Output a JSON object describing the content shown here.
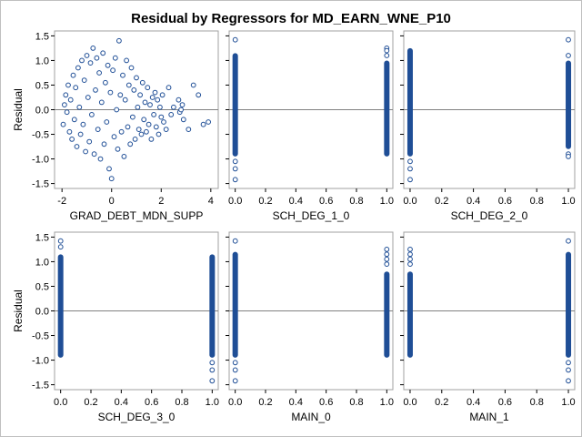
{
  "title": "Residual by Regressors for MD_EARN_WNE_P10",
  "colors": {
    "marker": "#1f4e96",
    "frame": "#a0a0a0",
    "refline": "#808080"
  },
  "chart_data": [
    {
      "type": "scatter",
      "xlabel": "GRAD_DEBT_MDN_SUPP",
      "ylabel": "Residual",
      "xlim": [
        -2.3,
        4.3
      ],
      "ylim": [
        -1.6,
        1.6
      ],
      "xticks": [
        -2,
        0,
        2,
        4
      ],
      "xtick_labels": [
        "-2",
        "0",
        "2",
        "4"
      ],
      "yticks": [
        -1.5,
        -1.0,
        -0.5,
        0.0,
        0.5,
        1.0,
        1.5
      ],
      "ytick_labels": [
        "-1.5",
        "-1.0",
        "-0.5",
        "0.0",
        "0.5",
        "1.0",
        "1.5"
      ],
      "reference_line_y": 0,
      "points": [
        [
          -1.95,
          -0.3
        ],
        [
          -1.9,
          0.1
        ],
        [
          -1.85,
          0.3
        ],
        [
          -1.8,
          -0.05
        ],
        [
          -1.75,
          0.5
        ],
        [
          -1.7,
          -0.45
        ],
        [
          -1.65,
          0.2
        ],
        [
          -1.6,
          -0.6
        ],
        [
          -1.55,
          0.7
        ],
        [
          -1.5,
          -0.2
        ],
        [
          -1.45,
          0.45
        ],
        [
          -1.4,
          -0.75
        ],
        [
          -1.35,
          0.85
        ],
        [
          -1.3,
          0.05
        ],
        [
          -1.25,
          -0.5
        ],
        [
          -1.2,
          1.0
        ],
        [
          -1.15,
          -0.3
        ],
        [
          -1.1,
          0.6
        ],
        [
          -1.05,
          -0.85
        ],
        [
          -1.0,
          1.1
        ],
        [
          -0.95,
          0.25
        ],
        [
          -0.9,
          -0.65
        ],
        [
          -0.85,
          0.95
        ],
        [
          -0.8,
          -0.1
        ],
        [
          -0.75,
          1.25
        ],
        [
          -0.7,
          -0.9
        ],
        [
          -0.65,
          0.4
        ],
        [
          -0.6,
          1.05
        ],
        [
          -0.55,
          -0.4
        ],
        [
          -0.5,
          0.75
        ],
        [
          -0.45,
          -1.0
        ],
        [
          -0.4,
          0.15
        ],
        [
          -0.35,
          1.15
        ],
        [
          -0.3,
          -0.7
        ],
        [
          -0.25,
          0.55
        ],
        [
          -0.2,
          -0.25
        ],
        [
          -0.15,
          0.9
        ],
        [
          -0.1,
          -1.2
        ],
        [
          -0.05,
          0.35
        ],
        [
          0.0,
          -1.4
        ],
        [
          0.05,
          0.8
        ],
        [
          0.1,
          -0.55
        ],
        [
          0.15,
          1.05
        ],
        [
          0.2,
          0.0
        ],
        [
          0.25,
          -0.8
        ],
        [
          0.3,
          1.4
        ],
        [
          0.35,
          0.3
        ],
        [
          0.4,
          -0.45
        ],
        [
          0.45,
          0.7
        ],
        [
          0.5,
          -0.95
        ],
        [
          0.55,
          0.2
        ],
        [
          0.6,
          1.0
        ],
        [
          0.65,
          -0.35
        ],
        [
          0.7,
          0.5
        ],
        [
          0.75,
          -0.7
        ],
        [
          0.8,
          0.85
        ],
        [
          0.85,
          -0.15
        ],
        [
          0.9,
          0.4
        ],
        [
          0.95,
          -0.6
        ],
        [
          1.0,
          0.65
        ],
        [
          1.05,
          0.05
        ],
        [
          1.1,
          -0.4
        ],
        [
          1.15,
          0.3
        ],
        [
          1.2,
          -0.5
        ],
        [
          1.25,
          0.55
        ],
        [
          1.3,
          -0.2
        ],
        [
          1.35,
          0.15
        ],
        [
          1.4,
          -0.45
        ],
        [
          1.45,
          0.45
        ],
        [
          1.5,
          -0.3
        ],
        [
          1.55,
          0.1
        ],
        [
          1.6,
          -0.6
        ],
        [
          1.65,
          0.25
        ],
        [
          1.7,
          -0.1
        ],
        [
          1.75,
          0.35
        ],
        [
          1.8,
          -0.35
        ],
        [
          1.85,
          0.2
        ],
        [
          1.9,
          -0.5
        ],
        [
          1.95,
          0.05
        ],
        [
          2.0,
          -0.15
        ],
        [
          2.05,
          0.3
        ],
        [
          2.1,
          -0.25
        ],
        [
          2.2,
          -0.4
        ],
        [
          2.3,
          0.45
        ],
        [
          2.4,
          -0.1
        ],
        [
          2.5,
          0.05
        ],
        [
          2.7,
          0.2
        ],
        [
          2.75,
          -0.05
        ],
        [
          2.8,
          0.0
        ],
        [
          2.85,
          0.1
        ],
        [
          2.9,
          -0.2
        ],
        [
          3.1,
          -0.4
        ],
        [
          3.3,
          0.5
        ],
        [
          3.5,
          0.3
        ],
        [
          3.7,
          -0.3
        ],
        [
          3.9,
          -0.25
        ]
      ]
    },
    {
      "type": "scatter",
      "xlabel": "SCH_DEG_1_0",
      "ylabel": "",
      "xlim": [
        -0.04,
        1.04
      ],
      "ylim": [
        -1.6,
        1.6
      ],
      "xticks": [
        0,
        0.2,
        0.4,
        0.6,
        0.8,
        1.0
      ],
      "xtick_labels": [
        "0.0",
        "0.2",
        "0.4",
        "0.6",
        "0.8",
        "1.0"
      ],
      "yticks": [
        -1.5,
        -1.0,
        -0.5,
        0.0,
        0.5,
        1.0,
        1.5
      ],
      "reference_line_y": 0,
      "columns": [
        {
          "x": 0,
          "solid": [
            -0.95,
            1.15
          ],
          "outliers": [
            1.42,
            -1.05,
            -1.2,
            -1.42
          ]
        },
        {
          "x": 1,
          "solid": [
            -0.95,
            1.0
          ],
          "outliers": [
            1.25,
            1.2,
            1.1
          ]
        }
      ]
    },
    {
      "type": "scatter",
      "xlabel": "SCH_DEG_2_0",
      "ylabel": "",
      "xlim": [
        -0.04,
        1.04
      ],
      "ylim": [
        -1.6,
        1.6
      ],
      "xticks": [
        0,
        0.2,
        0.4,
        0.6,
        0.8,
        1.0
      ],
      "xtick_labels": [
        "0.0",
        "0.2",
        "0.4",
        "0.6",
        "0.8",
        "1.0"
      ],
      "yticks": [
        -1.5,
        -1.0,
        -0.5,
        0.0,
        0.5,
        1.0,
        1.5
      ],
      "reference_line_y": 0,
      "columns": [
        {
          "x": 0,
          "solid": [
            -0.95,
            1.25
          ],
          "outliers": [
            -1.05,
            -1.2,
            -1.42
          ]
        },
        {
          "x": 1,
          "solid": [
            -0.8,
            1.0
          ],
          "outliers": [
            1.42,
            1.1,
            -0.9,
            -0.95
          ]
        }
      ]
    },
    {
      "type": "scatter",
      "xlabel": "SCH_DEG_3_0",
      "ylabel": "Residual",
      "xlim": [
        -0.04,
        1.04
      ],
      "ylim": [
        -1.6,
        1.6
      ],
      "xticks": [
        0,
        0.2,
        0.4,
        0.6,
        0.8,
        1.0
      ],
      "xtick_labels": [
        "0.0",
        "0.2",
        "0.4",
        "0.6",
        "0.8",
        "1.0"
      ],
      "yticks": [
        -1.5,
        -1.0,
        -0.5,
        0.0,
        0.5,
        1.0,
        1.5
      ],
      "ytick_labels": [
        "-1.5",
        "-1.0",
        "-0.5",
        "0.0",
        "0.5",
        "1.0",
        "1.5"
      ],
      "reference_line_y": 0,
      "columns": [
        {
          "x": 0,
          "solid": [
            -0.95,
            1.15
          ],
          "outliers": [
            1.42,
            1.3
          ]
        },
        {
          "x": 1,
          "solid": [
            -0.95,
            1.15
          ],
          "outliers": [
            -1.05,
            -1.2,
            -1.42
          ]
        }
      ]
    },
    {
      "type": "scatter",
      "xlabel": "MAIN_0",
      "ylabel": "",
      "xlim": [
        -0.04,
        1.04
      ],
      "ylim": [
        -1.6,
        1.6
      ],
      "xticks": [
        0,
        0.2,
        0.4,
        0.6,
        0.8,
        1.0
      ],
      "xtick_labels": [
        "0.0",
        "0.2",
        "0.4",
        "0.6",
        "0.8",
        "1.0"
      ],
      "yticks": [
        -1.5,
        -1.0,
        -0.5,
        0.0,
        0.5,
        1.0,
        1.5
      ],
      "reference_line_y": 0,
      "columns": [
        {
          "x": 0,
          "solid": [
            -0.95,
            1.2
          ],
          "outliers": [
            1.42,
            -1.05,
            -1.2,
            -1.42
          ]
        },
        {
          "x": 1,
          "solid": [
            -0.95,
            0.8
          ],
          "outliers": [
            1.25,
            1.15,
            1.05,
            0.95
          ]
        }
      ]
    },
    {
      "type": "scatter",
      "xlabel": "MAIN_1",
      "ylabel": "",
      "xlim": [
        -0.04,
        1.04
      ],
      "ylim": [
        -1.6,
        1.6
      ],
      "xticks": [
        0,
        0.2,
        0.4,
        0.6,
        0.8,
        1.0
      ],
      "xtick_labels": [
        "0.0",
        "0.2",
        "0.4",
        "0.6",
        "0.8",
        "1.0"
      ],
      "yticks": [
        -1.5,
        -1.0,
        -0.5,
        0.0,
        0.5,
        1.0,
        1.5
      ],
      "reference_line_y": 0,
      "columns": [
        {
          "x": 0,
          "solid": [
            -0.95,
            0.8
          ],
          "outliers": [
            1.25,
            1.15,
            1.05,
            0.95
          ]
        },
        {
          "x": 1,
          "solid": [
            -0.95,
            1.2
          ],
          "outliers": [
            1.42,
            -1.05,
            -1.2,
            -1.42
          ]
        }
      ]
    }
  ]
}
